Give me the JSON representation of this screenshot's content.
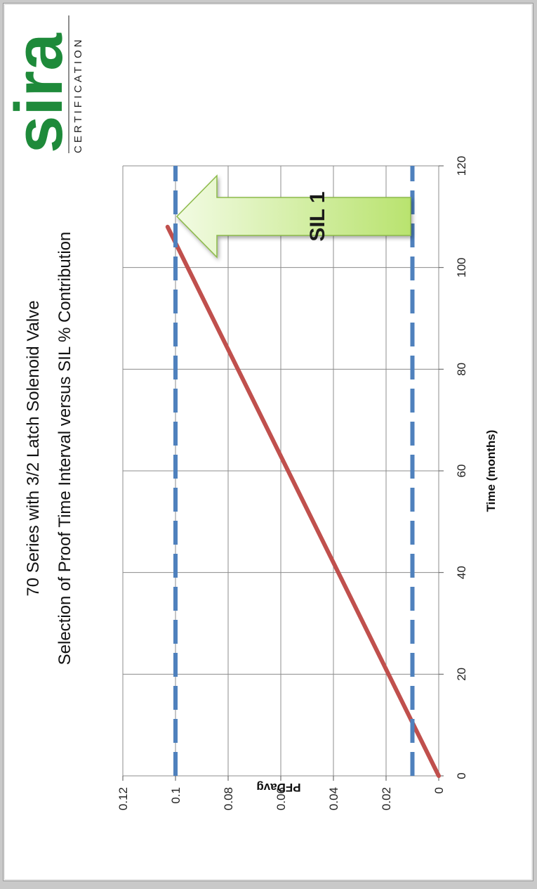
{
  "logo": {
    "name": "sira",
    "tagline": "CERTIFICATION",
    "color": "#1e8a3a"
  },
  "chart_data": {
    "type": "line",
    "title": "70 Series with 3/2 Latch Solenoid Valve",
    "subtitle": "Selection of Proof Time Interval versus SIL % Contribution",
    "xlabel": "Time (months)",
    "ylabel": "PFDavg",
    "xlim": [
      0,
      120
    ],
    "ylim": [
      0,
      0.12
    ],
    "x_ticks": [
      "0",
      "20",
      "40",
      "60",
      "80",
      "100",
      "120"
    ],
    "y_ticks": [
      "0",
      "0.02",
      "0.04",
      "0.06",
      "0.08",
      "0.1",
      "0.12"
    ],
    "grid": true,
    "series": [
      {
        "x": [
          0,
          108
        ],
        "y": [
          0,
          0.103
        ],
        "color": "#c0504d",
        "style": "solid"
      },
      {
        "x": [
          0,
          120
        ],
        "y": [
          0.1,
          0.1
        ],
        "color": "#4f81bd",
        "style": "dashed"
      },
      {
        "x": [
          0,
          120
        ],
        "y": [
          0.01,
          0.01
        ],
        "color": "#4f81bd",
        "style": "dashed"
      }
    ],
    "annotations": [
      {
        "text": "SIL 1",
        "shape": "arrow",
        "color": "#c7eb88"
      }
    ]
  }
}
